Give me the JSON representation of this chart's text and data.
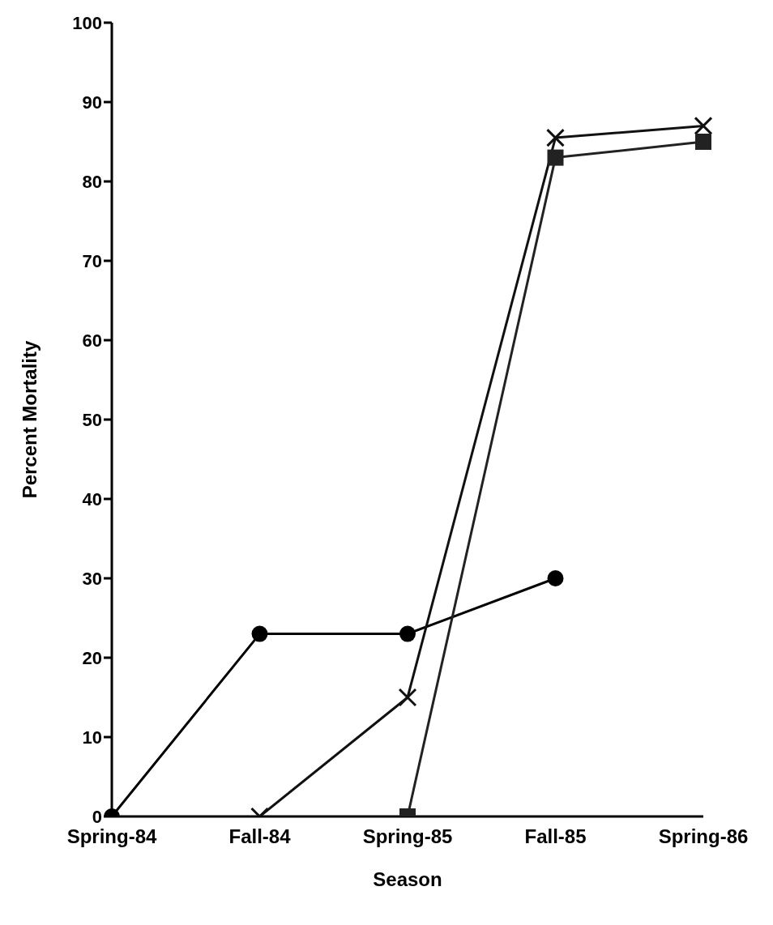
{
  "chart_data": {
    "type": "line",
    "xlabel": "Season",
    "ylabel": "Percent Mortality",
    "categories": [
      "Spring-84",
      "Fall-84",
      "Spring-85",
      "Fall-85",
      "Spring-86"
    ],
    "ylim": [
      0,
      100
    ],
    "yticks": [
      0,
      10,
      20,
      30,
      40,
      50,
      60,
      70,
      80,
      90,
      100
    ],
    "grid": false,
    "legend": false,
    "series": [
      {
        "color": "#000000",
        "marker": "circle",
        "values": [
          0,
          23,
          23,
          30,
          null
        ]
      },
      {
        "color": "#111111",
        "marker": "cross",
        "values": [
          null,
          0,
          15,
          85.5,
          87
        ]
      },
      {
        "color": "#222222",
        "marker": "square",
        "values": [
          null,
          null,
          0,
          83,
          85
        ]
      }
    ]
  }
}
